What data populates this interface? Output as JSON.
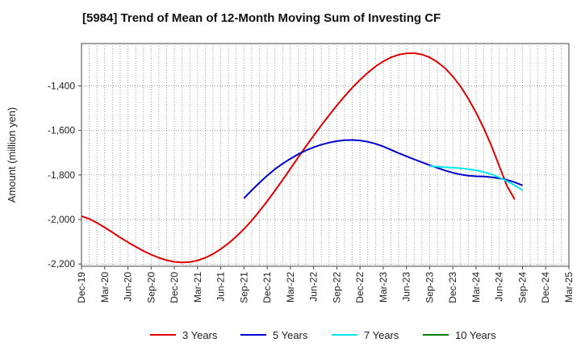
{
  "chart_data": {
    "type": "line",
    "title": "[5984]  Trend of Mean of 12-Month Moving Sum of Investing CF",
    "xlabel": "",
    "ylabel": "Amount (million yen)",
    "ylim": [
      -2210,
      -1210
    ],
    "yticks": [
      -2200,
      -2000,
      -1800,
      -1600,
      -1400
    ],
    "ytick_labels": [
      "-2,200",
      "-2,000",
      "-1,800",
      "-1,600",
      "-1,400"
    ],
    "x_start": "Dec-19",
    "x_end": "Mar-25",
    "x_tick_labels": [
      "Dec-19",
      "Mar-20",
      "Jun-20",
      "Sep-20",
      "Dec-20",
      "Mar-21",
      "Jun-21",
      "Sep-21",
      "Dec-21",
      "Mar-22",
      "Jun-22",
      "Sep-22",
      "Dec-22",
      "Mar-23",
      "Jun-23",
      "Sep-23",
      "Dec-23",
      "Mar-24",
      "Jun-24",
      "Sep-24",
      "Dec-24",
      "Mar-25"
    ],
    "grid": true,
    "legend_position": "bottom",
    "series": [
      {
        "name": "3 Years",
        "color": "#e00000",
        "points": [
          [
            0,
            -1985
          ],
          [
            1,
            -1997
          ],
          [
            2,
            -2015
          ],
          [
            3,
            -2036
          ],
          [
            4,
            -2058
          ],
          [
            5,
            -2081
          ],
          [
            6,
            -2102
          ],
          [
            7,
            -2122
          ],
          [
            8,
            -2141
          ],
          [
            9,
            -2158
          ],
          [
            10,
            -2172
          ],
          [
            11,
            -2183
          ],
          [
            12,
            -2190
          ],
          [
            13,
            -2193
          ],
          [
            14,
            -2191
          ],
          [
            15,
            -2184
          ],
          [
            16,
            -2172
          ],
          [
            17,
            -2155
          ],
          [
            18,
            -2133
          ],
          [
            19,
            -2107
          ],
          [
            20,
            -2077
          ],
          [
            21,
            -2043
          ],
          [
            22,
            -2005
          ],
          [
            23,
            -1963
          ],
          [
            24,
            -1918
          ],
          [
            25,
            -1871
          ],
          [
            26,
            -1822
          ],
          [
            27,
            -1772
          ],
          [
            28,
            -1722
          ],
          [
            29,
            -1672
          ],
          [
            30,
            -1624
          ],
          [
            31,
            -1577
          ],
          [
            32,
            -1532
          ],
          [
            33,
            -1488
          ],
          [
            34,
            -1447
          ],
          [
            35,
            -1408
          ],
          [
            36,
            -1373
          ],
          [
            37,
            -1341
          ],
          [
            38,
            -1313
          ],
          [
            39,
            -1290
          ],
          [
            40,
            -1272
          ],
          [
            41,
            -1260
          ],
          [
            42,
            -1254
          ],
          [
            43,
            -1253
          ],
          [
            44,
            -1259
          ],
          [
            45,
            -1272
          ],
          [
            46,
            -1293
          ],
          [
            47,
            -1321
          ],
          [
            48,
            -1358
          ],
          [
            49,
            -1403
          ],
          [
            50,
            -1458
          ],
          [
            51,
            -1520
          ],
          [
            52,
            -1590
          ],
          [
            53,
            -1670
          ],
          [
            54,
            -1760
          ],
          [
            55,
            -1850
          ],
          [
            56,
            -1910
          ]
        ]
      },
      {
        "name": "5 Years",
        "color": "#0000cc",
        "points": [
          [
            21,
            -1905
          ],
          [
            22,
            -1869
          ],
          [
            23,
            -1835
          ],
          [
            24,
            -1803
          ],
          [
            25,
            -1774
          ],
          [
            26,
            -1749
          ],
          [
            27,
            -1727
          ],
          [
            28,
            -1707
          ],
          [
            29,
            -1690
          ],
          [
            30,
            -1676
          ],
          [
            31,
            -1664
          ],
          [
            32,
            -1655
          ],
          [
            33,
            -1648
          ],
          [
            34,
            -1644
          ],
          [
            35,
            -1643
          ],
          [
            36,
            -1645
          ],
          [
            37,
            -1651
          ],
          [
            38,
            -1660
          ],
          [
            39,
            -1672
          ],
          [
            40,
            -1687
          ],
          [
            41,
            -1702
          ],
          [
            42,
            -1716
          ],
          [
            43,
            -1730
          ],
          [
            44,
            -1743
          ],
          [
            45,
            -1756
          ],
          [
            46,
            -1768
          ],
          [
            47,
            -1780
          ],
          [
            48,
            -1790
          ],
          [
            49,
            -1798
          ],
          [
            50,
            -1803
          ],
          [
            51,
            -1806
          ],
          [
            52,
            -1807
          ],
          [
            53,
            -1810
          ],
          [
            54,
            -1815
          ],
          [
            55,
            -1822
          ],
          [
            56,
            -1833
          ],
          [
            57,
            -1847
          ]
        ]
      },
      {
        "name": "7 Years",
        "color": "#00e5ee",
        "points": [
          [
            45,
            -1760
          ],
          [
            46,
            -1763
          ],
          [
            47,
            -1765
          ],
          [
            48,
            -1767
          ],
          [
            49,
            -1770
          ],
          [
            50,
            -1774
          ],
          [
            51,
            -1779
          ],
          [
            52,
            -1787
          ],
          [
            53,
            -1797
          ],
          [
            54,
            -1811
          ],
          [
            55,
            -1828
          ],
          [
            56,
            -1847
          ],
          [
            57,
            -1868
          ]
        ]
      },
      {
        "name": "10 Years",
        "color": "#008000",
        "points": []
      }
    ]
  }
}
